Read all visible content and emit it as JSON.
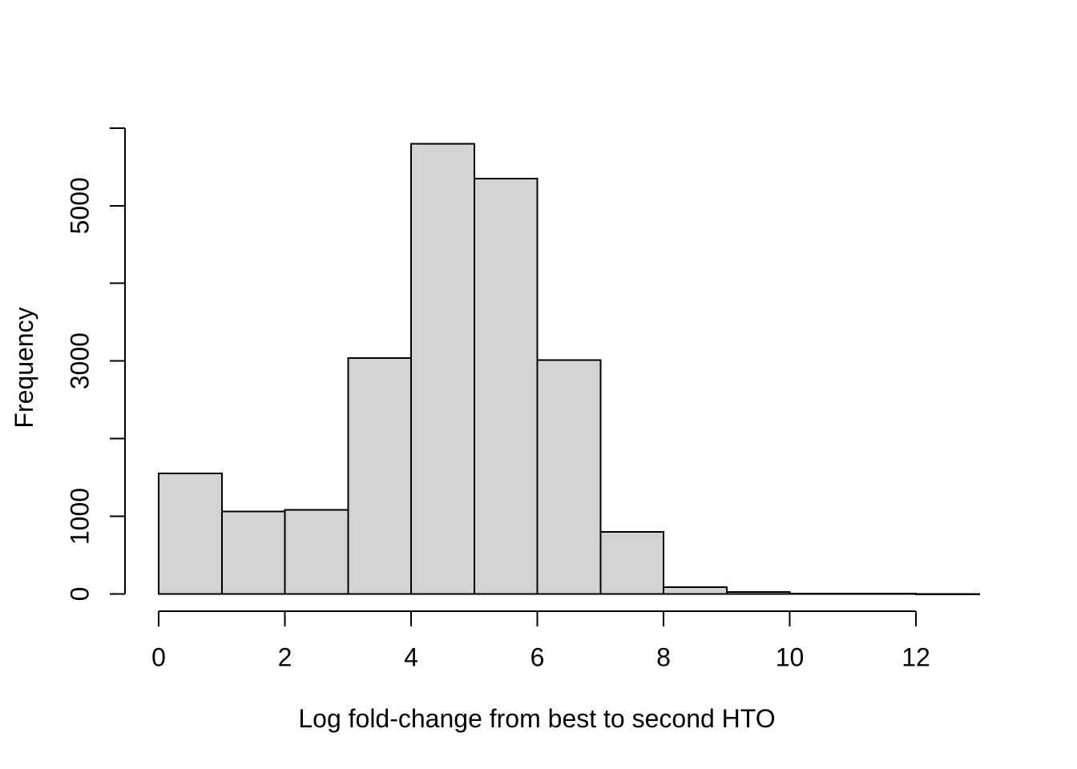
{
  "figure": {
    "background_color": "#ffffff"
  },
  "chart_data": {
    "type": "bar",
    "subtype": "histogram",
    "title": "",
    "xlabel": "Log fold-change from best to second HTO",
    "ylabel": "Frequency",
    "bin_breaks": [
      0,
      1,
      2,
      3,
      4,
      5,
      6,
      7,
      8,
      9,
      10,
      11,
      12,
      13
    ],
    "counts": [
      1550,
      1065,
      1085,
      3040,
      5800,
      5350,
      3010,
      800,
      90,
      25,
      5,
      3,
      1
    ],
    "xlim": [
      0,
      13
    ],
    "ylim": [
      0,
      6000
    ],
    "x_ticks": [
      {
        "value": 0,
        "label": "0"
      },
      {
        "value": 2,
        "label": "2"
      },
      {
        "value": 4,
        "label": "4"
      },
      {
        "value": 6,
        "label": "6"
      },
      {
        "value": 8,
        "label": "8"
      },
      {
        "value": 10,
        "label": "10"
      },
      {
        "value": 12,
        "label": "12"
      }
    ],
    "y_ticks": [
      {
        "value": 0,
        "label": "0"
      },
      {
        "value": 1000,
        "label": "1000"
      },
      {
        "value": 2000,
        "label": ""
      },
      {
        "value": 3000,
        "label": "3000"
      },
      {
        "value": 4000,
        "label": ""
      },
      {
        "value": 5000,
        "label": "5000"
      },
      {
        "value": 6000,
        "label": ""
      }
    ],
    "grid": false,
    "legend": false,
    "bar_fill": "#d3d3d3",
    "bar_stroke": "#000000",
    "axis_color": "#000000"
  }
}
